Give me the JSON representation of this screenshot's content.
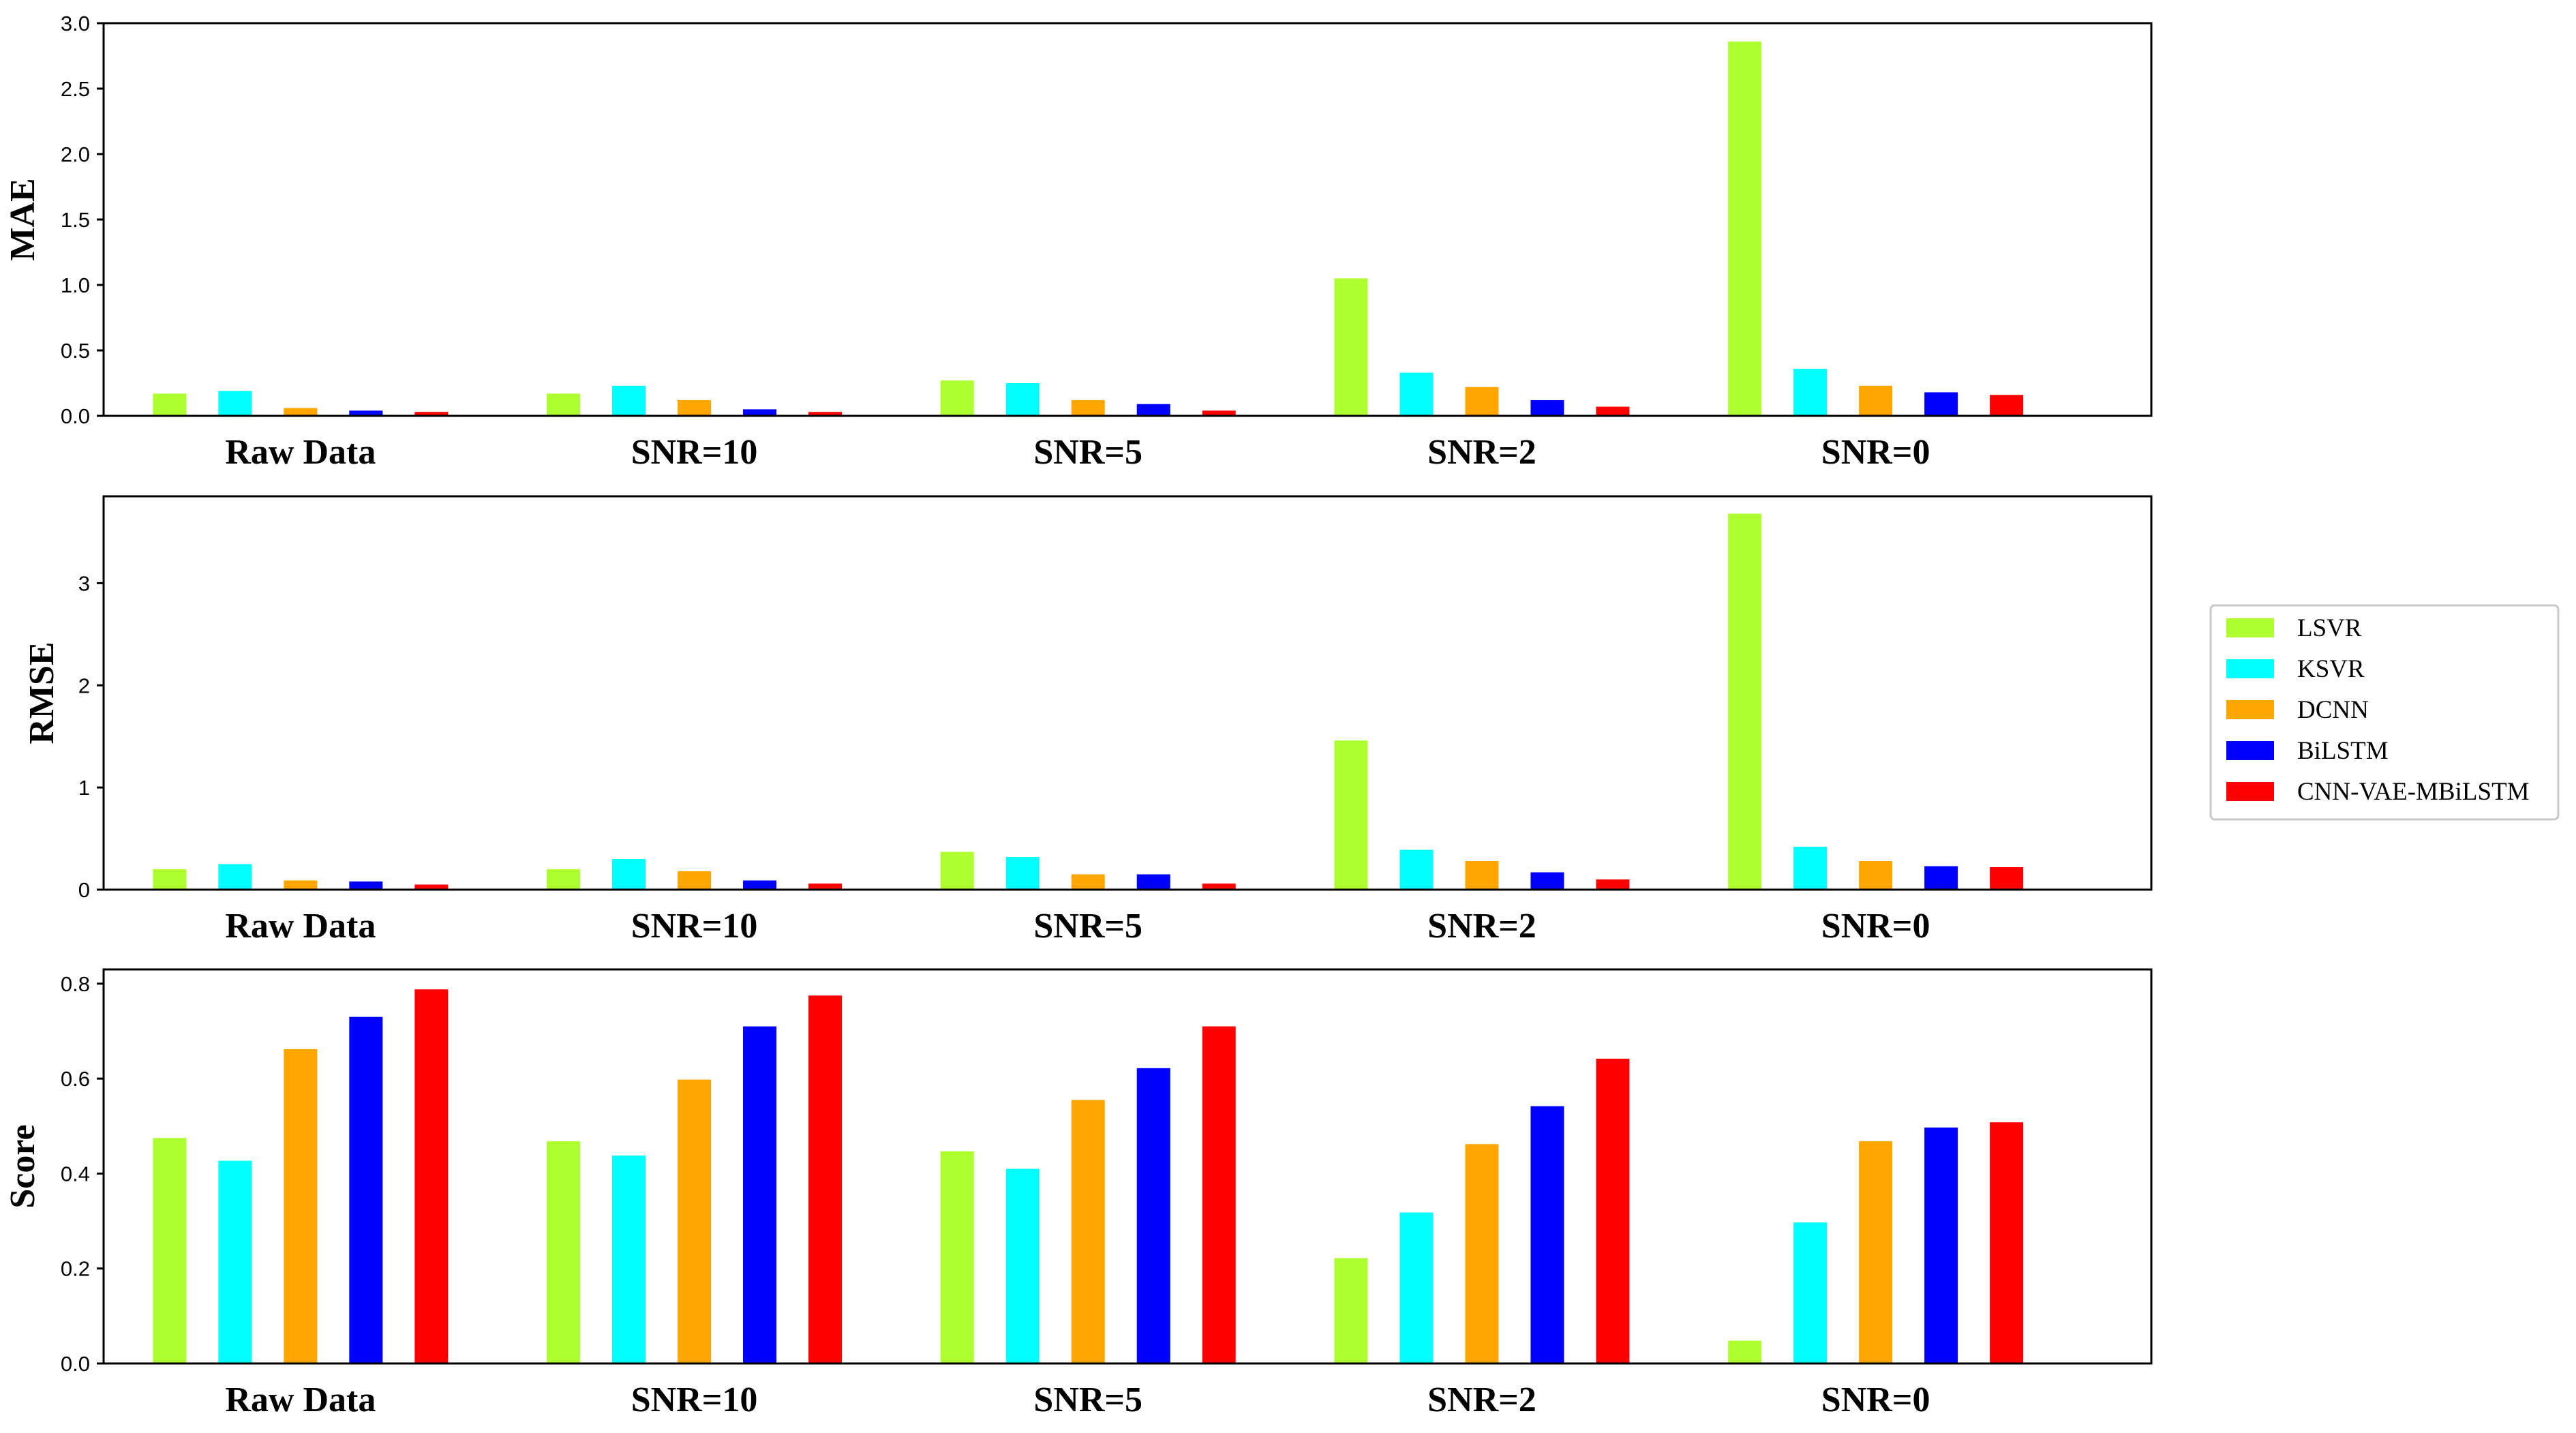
{
  "chart_data": [
    {
      "type": "bar",
      "ylabel": "MAE",
      "ylim": [
        0,
        3.0
      ],
      "yticks": [
        0.0,
        0.5,
        1.0,
        1.5,
        2.0,
        2.5,
        3.0
      ],
      "ytick_labels": [
        "0.0",
        "0.5",
        "1.0",
        "1.5",
        "2.0",
        "2.5",
        "3.0"
      ],
      "categories": [
        "Raw Data",
        "SNR=10",
        "SNR=5",
        "SNR=2",
        "SNR=0"
      ],
      "series": [
        {
          "name": "LSVR",
          "values": [
            0.17,
            0.17,
            0.27,
            1.05,
            2.86
          ]
        },
        {
          "name": "KSVR",
          "values": [
            0.19,
            0.23,
            0.25,
            0.33,
            0.36
          ]
        },
        {
          "name": "DCNN",
          "values": [
            0.06,
            0.12,
            0.12,
            0.22,
            0.23
          ]
        },
        {
          "name": "BiLSTM",
          "values": [
            0.04,
            0.05,
            0.09,
            0.12,
            0.18
          ]
        },
        {
          "name": "CNN-VAE-MBiLSTM",
          "values": [
            0.03,
            0.03,
            0.04,
            0.07,
            0.16
          ]
        }
      ]
    },
    {
      "type": "bar",
      "ylabel": "RMSE",
      "ylim": [
        0,
        3.85
      ],
      "yticks": [
        0,
        1,
        2,
        3
      ],
      "ytick_labels": [
        "0",
        "1",
        "2",
        "3"
      ],
      "categories": [
        "Raw Data",
        "SNR=10",
        "SNR=5",
        "SNR=2",
        "SNR=0"
      ],
      "series": [
        {
          "name": "LSVR",
          "values": [
            0.2,
            0.2,
            0.37,
            1.46,
            3.68
          ]
        },
        {
          "name": "KSVR",
          "values": [
            0.25,
            0.3,
            0.32,
            0.39,
            0.42
          ]
        },
        {
          "name": "DCNN",
          "values": [
            0.09,
            0.18,
            0.15,
            0.28,
            0.28
          ]
        },
        {
          "name": "BiLSTM",
          "values": [
            0.08,
            0.09,
            0.15,
            0.17,
            0.23
          ]
        },
        {
          "name": "CNN-VAE-MBiLSTM",
          "values": [
            0.05,
            0.06,
            0.06,
            0.1,
            0.22
          ]
        }
      ]
    },
    {
      "type": "bar",
      "ylabel": "Score",
      "ylim": [
        0,
        0.83
      ],
      "yticks": [
        0.0,
        0.2,
        0.4,
        0.6,
        0.8
      ],
      "ytick_labels": [
        "0.0",
        "0.2",
        "0.4",
        "0.6",
        "0.8"
      ],
      "categories": [
        "Raw Data",
        "SNR=10",
        "SNR=5",
        "SNR=2",
        "SNR=0"
      ],
      "series": [
        {
          "name": "LSVR",
          "values": [
            0.475,
            0.468,
            0.447,
            0.222,
            0.048
          ]
        },
        {
          "name": "KSVR",
          "values": [
            0.427,
            0.438,
            0.41,
            0.318,
            0.297
          ]
        },
        {
          "name": "DCNN",
          "values": [
            0.662,
            0.598,
            0.555,
            0.462,
            0.468
          ]
        },
        {
          "name": "BiLSTM",
          "values": [
            0.73,
            0.71,
            0.622,
            0.542,
            0.497
          ]
        },
        {
          "name": "CNN-VAE-MBiLSTM",
          "values": [
            0.788,
            0.775,
            0.71,
            0.642,
            0.508
          ]
        }
      ]
    }
  ],
  "legend": {
    "placement": "right-center",
    "entries": [
      {
        "label": "LSVR",
        "color": "#adff2f"
      },
      {
        "label": "KSVR",
        "color": "#00ffff"
      },
      {
        "label": "DCNN",
        "color": "#ffa500"
      },
      {
        "label": "BiLSTM",
        "color": "#0000ff"
      },
      {
        "label": "CNN-VAE-MBiLSTM",
        "color": "#ff0000"
      }
    ]
  }
}
